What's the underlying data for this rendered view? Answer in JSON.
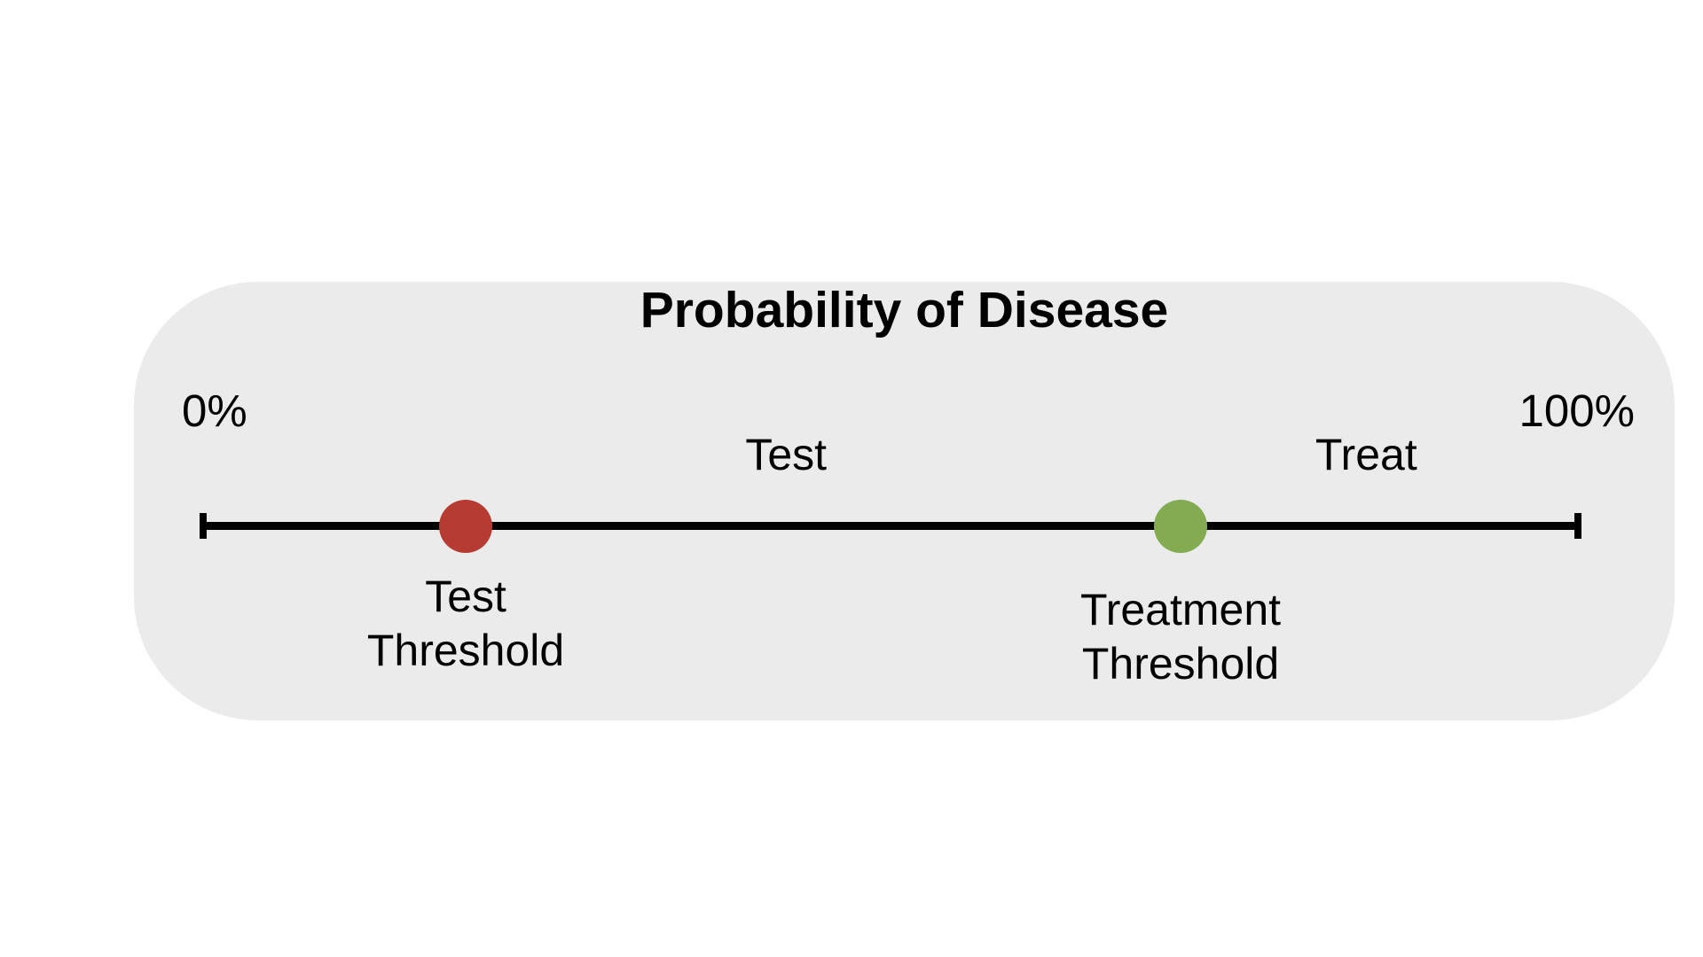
{
  "diagram": {
    "title": "Probability of Disease",
    "scale": {
      "min_label": "0%",
      "max_label": "100%"
    },
    "regions": [
      {
        "label": "Test",
        "position_pct": 42.4
      },
      {
        "label": "Treat",
        "position_pct": 84.6
      }
    ],
    "thresholds": [
      {
        "label_line1": "Test",
        "label_line2": "Threshold",
        "color": "#B63B32",
        "position_pct": 19.1
      },
      {
        "label_line1": "Treatment",
        "label_line2": "Threshold",
        "color": "#83AB52",
        "position_pct": 71.1
      }
    ],
    "colors": {
      "panel_bg": "#EBEBEB",
      "line": "#000000",
      "text": "#000000"
    }
  }
}
